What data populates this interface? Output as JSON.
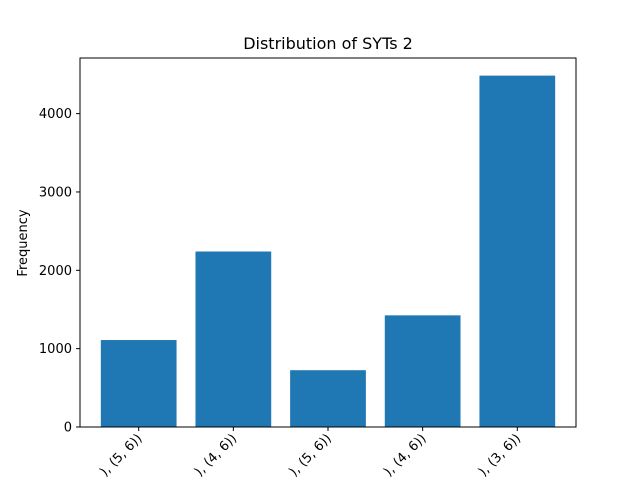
{
  "chart_data": {
    "type": "bar",
    "title": "Distribution of SYTs 2",
    "xlabel": "",
    "ylabel": "Frequency",
    "categories": [
      "), (5, 6))",
      "), (4, 6))",
      "), (5, 6))",
      "), (4, 6))",
      "), (3, 6))"
    ],
    "values": [
      1110,
      2240,
      725,
      1425,
      4485
    ],
    "ylim": [
      0,
      4710
    ],
    "yticks": [
      0,
      1000,
      2000,
      3000,
      4000
    ],
    "grid": false,
    "bar_color": "#1f77b4"
  }
}
